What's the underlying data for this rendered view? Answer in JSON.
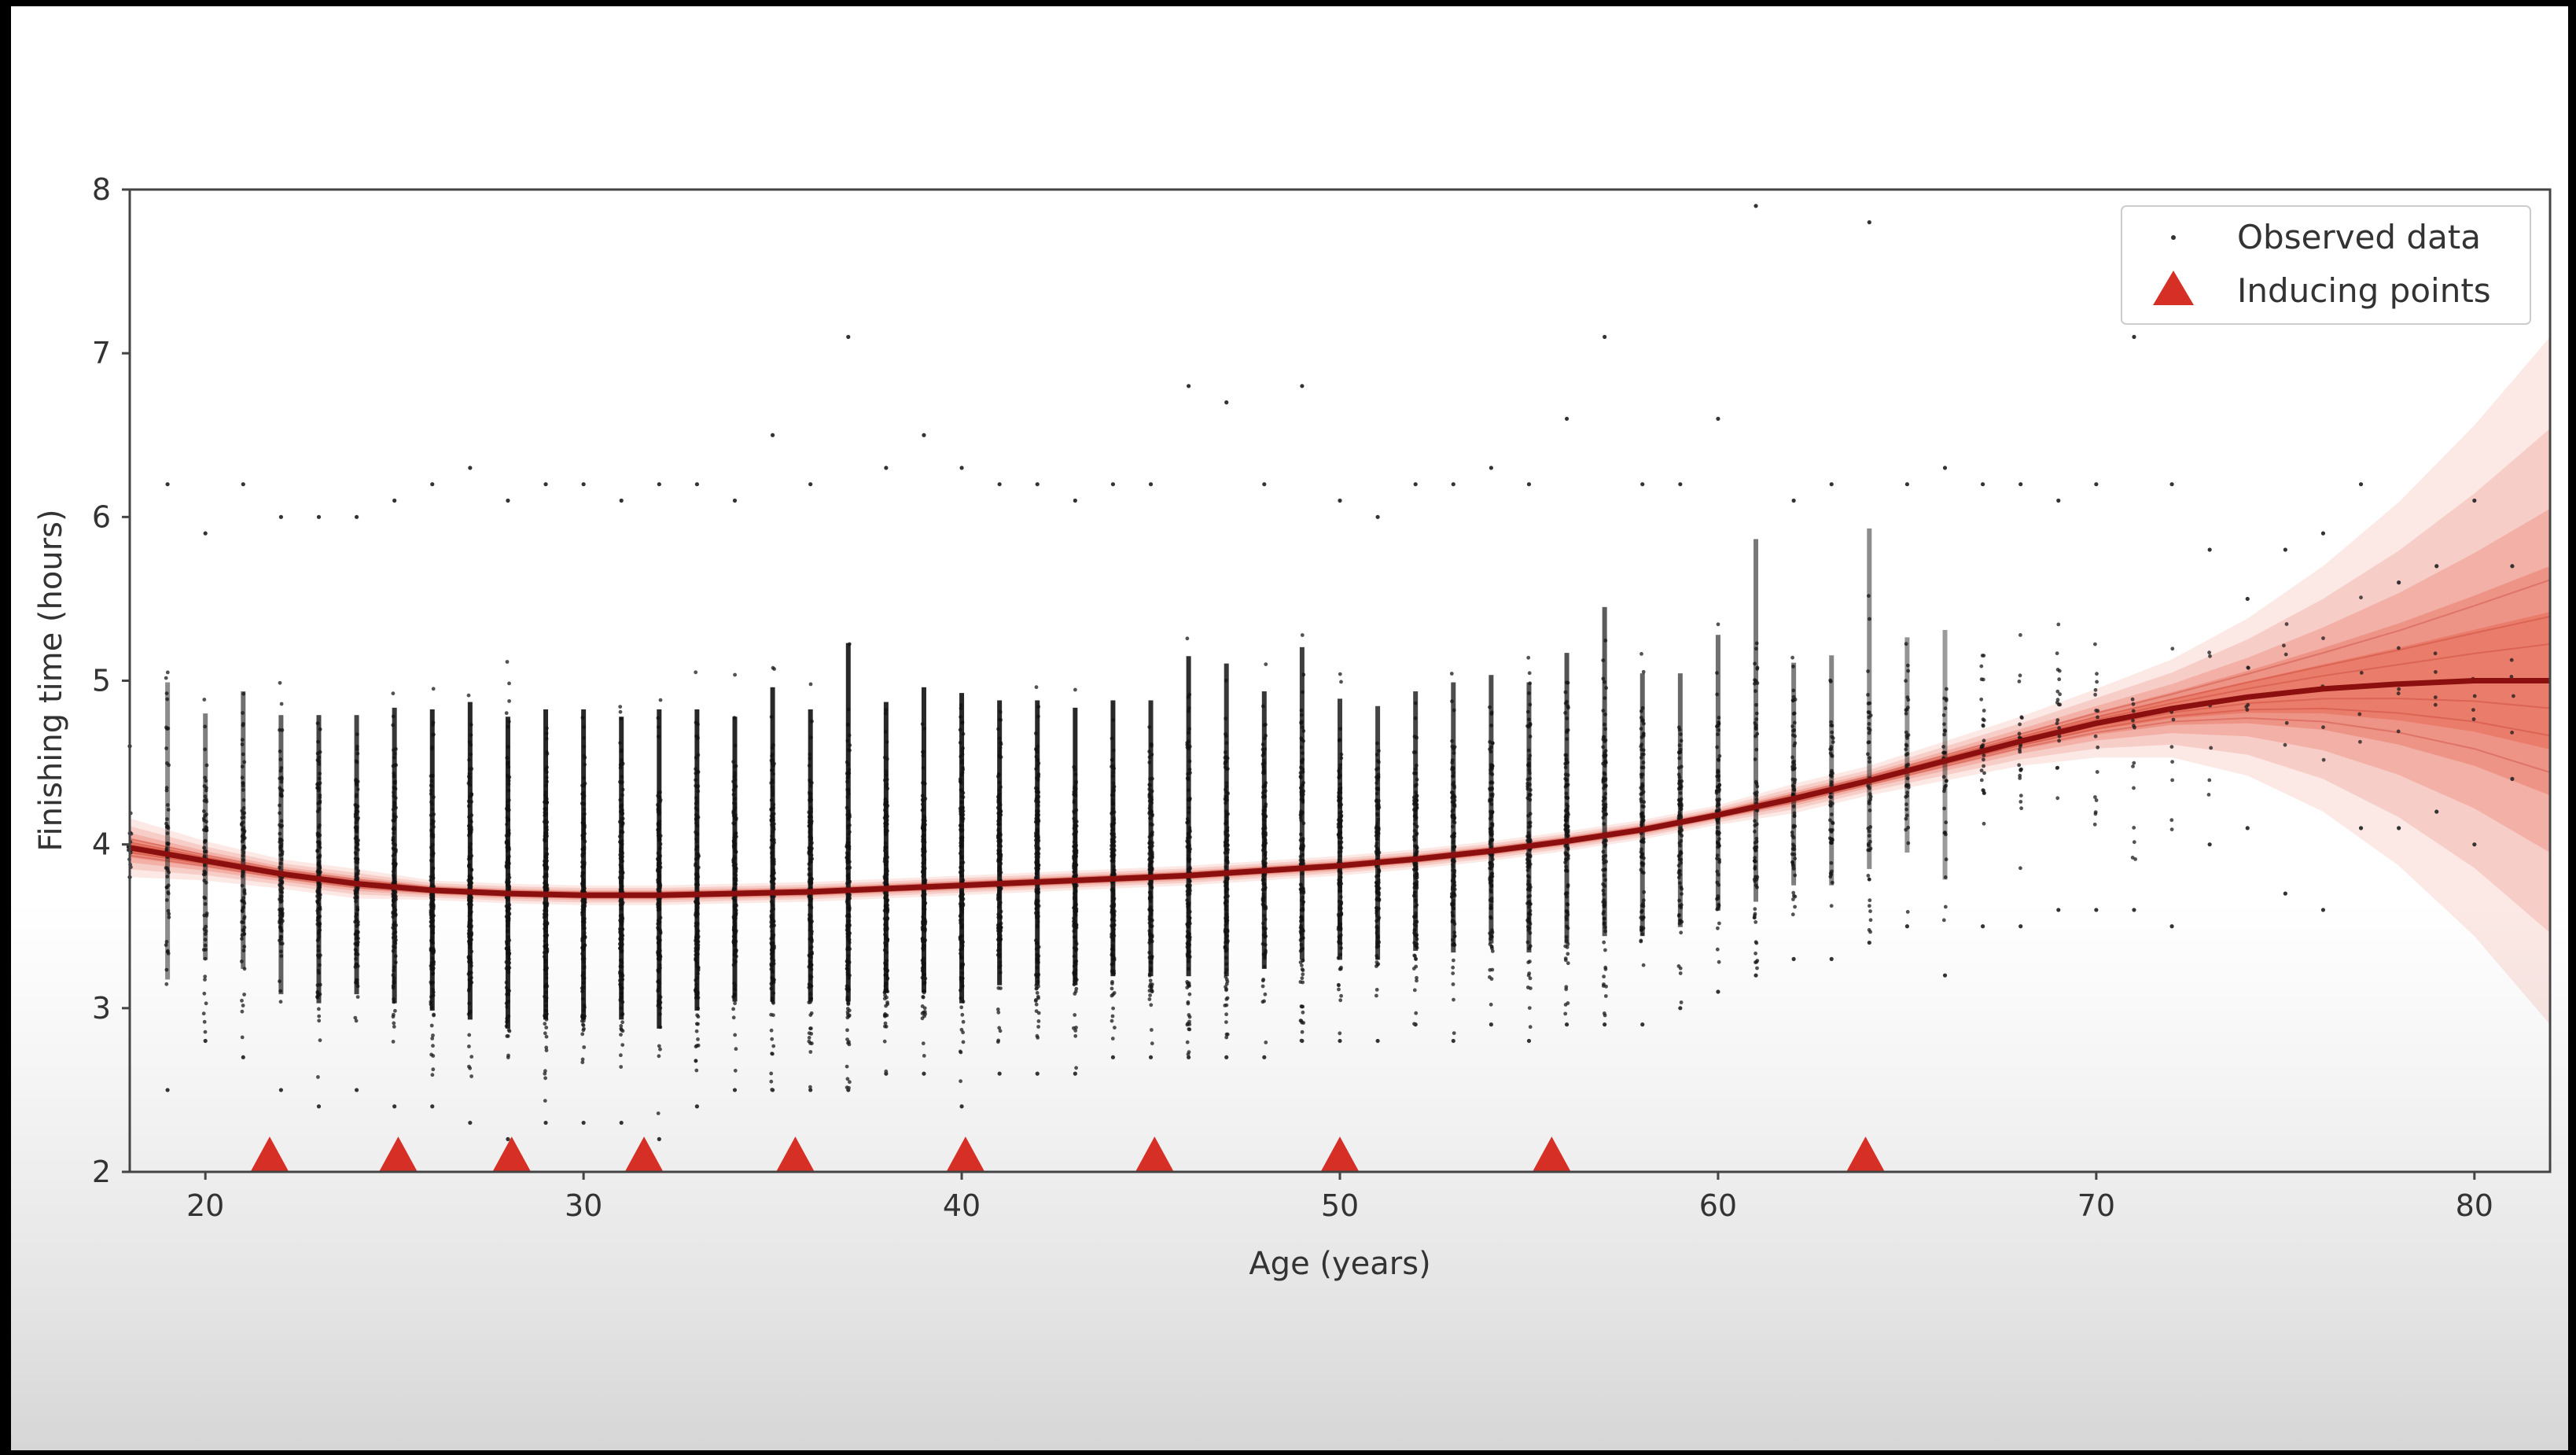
{
  "chart_data": {
    "type": "scatter",
    "title": "",
    "xlabel": "Age (years)",
    "ylabel": "Finishing time (hours)",
    "xlim": [
      18,
      82
    ],
    "ylim": [
      2,
      8
    ],
    "x_ticks": [
      20,
      30,
      40,
      50,
      60,
      70,
      80
    ],
    "y_ticks": [
      2,
      3,
      4,
      5,
      6,
      7,
      8
    ],
    "grid": false,
    "legend_position": "top-right",
    "series": [
      {
        "name": "Observed data",
        "kind": "scatter",
        "color": "#222222",
        "ages": [
          18,
          19,
          20,
          21,
          22,
          23,
          24,
          25,
          26,
          27,
          28,
          29,
          30,
          31,
          32,
          33,
          34,
          35,
          36,
          37,
          38,
          39,
          40,
          41,
          42,
          43,
          44,
          45,
          46,
          47,
          48,
          49,
          50,
          51,
          52,
          53,
          54,
          55,
          56,
          57,
          58,
          59,
          60,
          61,
          62,
          63,
          64,
          65,
          66,
          67,
          68,
          69,
          70,
          71,
          72,
          73,
          74,
          75,
          76,
          77,
          78,
          79,
          80,
          81
        ],
        "y_min": [
          3.8,
          2.5,
          2.8,
          2.7,
          2.5,
          2.4,
          2.5,
          2.4,
          2.4,
          2.3,
          2.2,
          2.3,
          2.3,
          2.3,
          2.2,
          2.4,
          2.5,
          2.5,
          2.5,
          2.5,
          2.6,
          2.6,
          2.4,
          2.6,
          2.6,
          2.6,
          2.7,
          2.7,
          2.7,
          2.7,
          2.7,
          2.8,
          2.8,
          2.8,
          2.9,
          2.8,
          2.9,
          2.8,
          2.9,
          2.9,
          2.9,
          3.0,
          3.1,
          3.2,
          3.3,
          3.3,
          3.4,
          3.5,
          3.2,
          3.5,
          3.5,
          3.6,
          3.6,
          3.6,
          3.5,
          4.0,
          4.1,
          3.7,
          3.6,
          4.1,
          4.1,
          4.2,
          4.0,
          4.4
        ],
        "y_max": [
          4.6,
          6.2,
          5.9,
          6.2,
          6.0,
          6.0,
          6.0,
          6.1,
          6.2,
          6.3,
          6.1,
          6.2,
          6.2,
          6.1,
          6.2,
          6.2,
          6.1,
          6.5,
          6.2,
          7.1,
          6.3,
          6.5,
          6.3,
          6.2,
          6.2,
          6.1,
          6.2,
          6.2,
          6.8,
          6.7,
          6.2,
          6.8,
          6.1,
          6.0,
          6.2,
          6.2,
          6.3,
          6.2,
          6.6,
          7.1,
          6.2,
          6.2,
          6.6,
          7.9,
          6.1,
          6.2,
          7.8,
          6.2,
          6.3,
          6.2,
          6.2,
          6.1,
          6.2,
          7.1,
          6.2,
          5.8,
          5.5,
          5.8,
          5.9,
          6.2,
          5.6,
          5.7,
          6.1,
          5.7
        ],
        "y_median": [
          4.0,
          4.0,
          3.9,
          3.9,
          3.8,
          3.8,
          3.8,
          3.8,
          3.7,
          3.7,
          3.7,
          3.7,
          3.7,
          3.7,
          3.7,
          3.7,
          3.7,
          3.7,
          3.7,
          3.7,
          3.7,
          3.7,
          3.8,
          3.8,
          3.8,
          3.8,
          3.8,
          3.8,
          3.8,
          3.8,
          3.9,
          3.9,
          3.9,
          3.9,
          3.9,
          4.0,
          4.0,
          4.0,
          4.0,
          4.1,
          4.1,
          4.1,
          4.2,
          4.2,
          4.3,
          4.3,
          4.4,
          4.5,
          4.5,
          4.6,
          4.6,
          4.7,
          4.7,
          4.8,
          4.8,
          4.8,
          4.9,
          4.9,
          5.0,
          5.0,
          5.0,
          5.0,
          5.0,
          5.0
        ],
        "density": [
          0.1,
          0.3,
          0.4,
          0.5,
          0.6,
          0.8,
          0.8,
          0.9,
          1.0,
          1.0,
          1.0,
          1.0,
          1.0,
          1.0,
          1.0,
          1.0,
          1.0,
          1.0,
          1.0,
          1.0,
          1.0,
          1.0,
          1.0,
          1.0,
          1.0,
          1.0,
          1.0,
          0.95,
          0.95,
          0.9,
          0.9,
          0.85,
          0.85,
          0.8,
          0.8,
          0.75,
          0.75,
          0.7,
          0.7,
          0.65,
          0.6,
          0.55,
          0.5,
          0.45,
          0.4,
          0.35,
          0.3,
          0.25,
          0.2,
          0.18,
          0.15,
          0.12,
          0.1,
          0.08,
          0.05,
          0.04,
          0.03,
          0.03,
          0.02,
          0.02,
          0.02,
          0.02,
          0.01,
          0.01
        ]
      },
      {
        "name": "Inducing points",
        "kind": "marker",
        "marker": "triangle",
        "color": "#d62f25",
        "x": [
          21.7,
          25.1,
          28.1,
          31.6,
          35.6,
          40.1,
          45.1,
          50.0,
          55.6,
          63.9
        ],
        "y": [
          2.1,
          2.1,
          2.1,
          2.1,
          2.1,
          2.1,
          2.1,
          2.1,
          2.1,
          2.1
        ]
      },
      {
        "name": "",
        "kind": "posterior-mean",
        "color": "#8b0f0f",
        "x": [
          18,
          20,
          22,
          24,
          26,
          28,
          30,
          32,
          34,
          36,
          38,
          40,
          42,
          44,
          46,
          48,
          50,
          52,
          54,
          56,
          58,
          60,
          62,
          64,
          66,
          68,
          70,
          72,
          74,
          76,
          78,
          80,
          82
        ],
        "y": [
          3.98,
          3.9,
          3.82,
          3.76,
          3.72,
          3.7,
          3.69,
          3.69,
          3.7,
          3.71,
          3.73,
          3.75,
          3.77,
          3.79,
          3.81,
          3.84,
          3.87,
          3.91,
          3.96,
          4.02,
          4.09,
          4.18,
          4.28,
          4.39,
          4.51,
          4.63,
          4.74,
          4.83,
          4.9,
          4.95,
          4.98,
          5.0,
          5.0
        ],
        "band_halfwidth": [
          0.06,
          0.04,
          0.03,
          0.03,
          0.02,
          0.02,
          0.02,
          0.02,
          0.02,
          0.02,
          0.02,
          0.02,
          0.02,
          0.02,
          0.02,
          0.02,
          0.02,
          0.02,
          0.02,
          0.02,
          0.02,
          0.02,
          0.03,
          0.03,
          0.04,
          0.05,
          0.07,
          0.1,
          0.16,
          0.25,
          0.37,
          0.52,
          0.7
        ]
      }
    ]
  },
  "legend": {
    "observed_label": "Observed data",
    "inducing_label": "Inducing points"
  },
  "colors": {
    "axis": "#444444",
    "tick_text": "#333333",
    "band": "#e34a33"
  }
}
